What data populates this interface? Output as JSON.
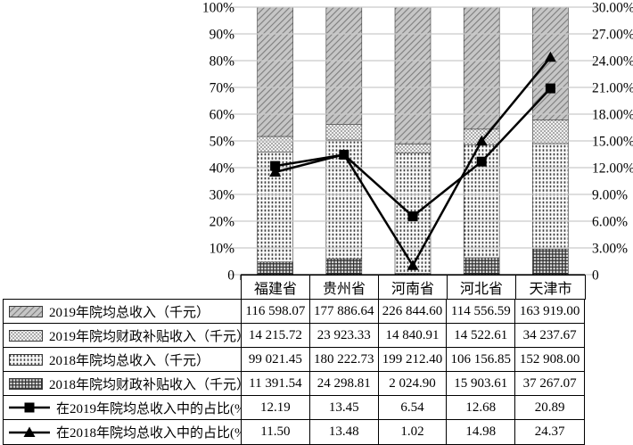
{
  "chart": {
    "left_axis": {
      "ticks": [
        "100%",
        "90%",
        "80%",
        "70%",
        "60%",
        "50%",
        "40%",
        "30%",
        "20%",
        "10%",
        "0"
      ],
      "min": 0,
      "max": 100
    },
    "right_axis": {
      "ticks": [
        "30.00%",
        "27.00%",
        "24.00%",
        "21.00%",
        "18.00%",
        "15.00%",
        "12.00%",
        "9.00%",
        "6.00%",
        "3.00%",
        "0"
      ],
      "min": 0,
      "max": 30
    },
    "colors": {
      "grid": "#c9c9c9",
      "axis": "#000000",
      "line": "#000000",
      "segment_outline": "#3a3a3a"
    }
  },
  "chart_data": {
    "type": [
      "stacked-bar-100",
      "line"
    ],
    "categories": [
      "福建省",
      "贵州省",
      "河南省",
      "河北省",
      "天津市"
    ],
    "bar_series": [
      {
        "name": "2019年院均总收入（千元）",
        "pattern": "diagonal-hatch",
        "values": [
          116598.07,
          177886.64,
          226844.6,
          114556.59,
          163919.0
        ],
        "display": [
          "116 598.07",
          "177 886.64",
          "226 844.60",
          "114 556.59",
          "163 919.00"
        ]
      },
      {
        "name": "2019年院均财政补贴收入（千元）",
        "pattern": "diamond-mesh",
        "values": [
          14215.72,
          23923.33,
          14840.91,
          14522.61,
          34237.67
        ],
        "display": [
          "14 215.72",
          "23 923.33",
          "14 840.91",
          "14 522.61",
          "34 237.67"
        ]
      },
      {
        "name": "2018年院均总收入（千元）",
        "pattern": "dot-grid",
        "values": [
          99021.45,
          180222.73,
          199212.4,
          106156.85,
          152908.0
        ],
        "display": [
          "99 021.45",
          "180 222.73",
          "199 212.40",
          "106 156.85",
          "152 908.00"
        ]
      },
      {
        "name": "2018年院均财政补贴收入（千元）",
        "pattern": "dense-grid",
        "values": [
          11391.54,
          24298.81,
          2024.9,
          15903.61,
          37267.07
        ],
        "display": [
          "11 391.54",
          "24 298.81",
          "2 024.90",
          "15 903.61",
          "37 267.07"
        ]
      }
    ],
    "line_series": [
      {
        "name": "在2019年院均总收入中的占比(%)",
        "marker": "square",
        "values": [
          12.19,
          13.45,
          6.54,
          12.68,
          20.89
        ],
        "display": [
          "12.19",
          "13.45",
          "6.54",
          "12.68",
          "20.89"
        ]
      },
      {
        "name": "在2018年院均总收入中的占比(%)",
        "marker": "triangle",
        "values": [
          11.5,
          13.48,
          1.02,
          14.98,
          24.37
        ],
        "display": [
          "11.50",
          "13.48",
          "1.02",
          "14.98",
          "24.37"
        ]
      }
    ],
    "layout": {
      "bar_mode": "100%-stacked",
      "stack_order": "last-series-at-bottom",
      "grid": "horizontal",
      "left_ylim": [
        0,
        100
      ],
      "right_ylim": [
        0,
        30
      ]
    }
  },
  "table": {
    "header": [
      "福建省",
      "贵州省",
      "河南省",
      "河北省",
      "天津市"
    ]
  }
}
